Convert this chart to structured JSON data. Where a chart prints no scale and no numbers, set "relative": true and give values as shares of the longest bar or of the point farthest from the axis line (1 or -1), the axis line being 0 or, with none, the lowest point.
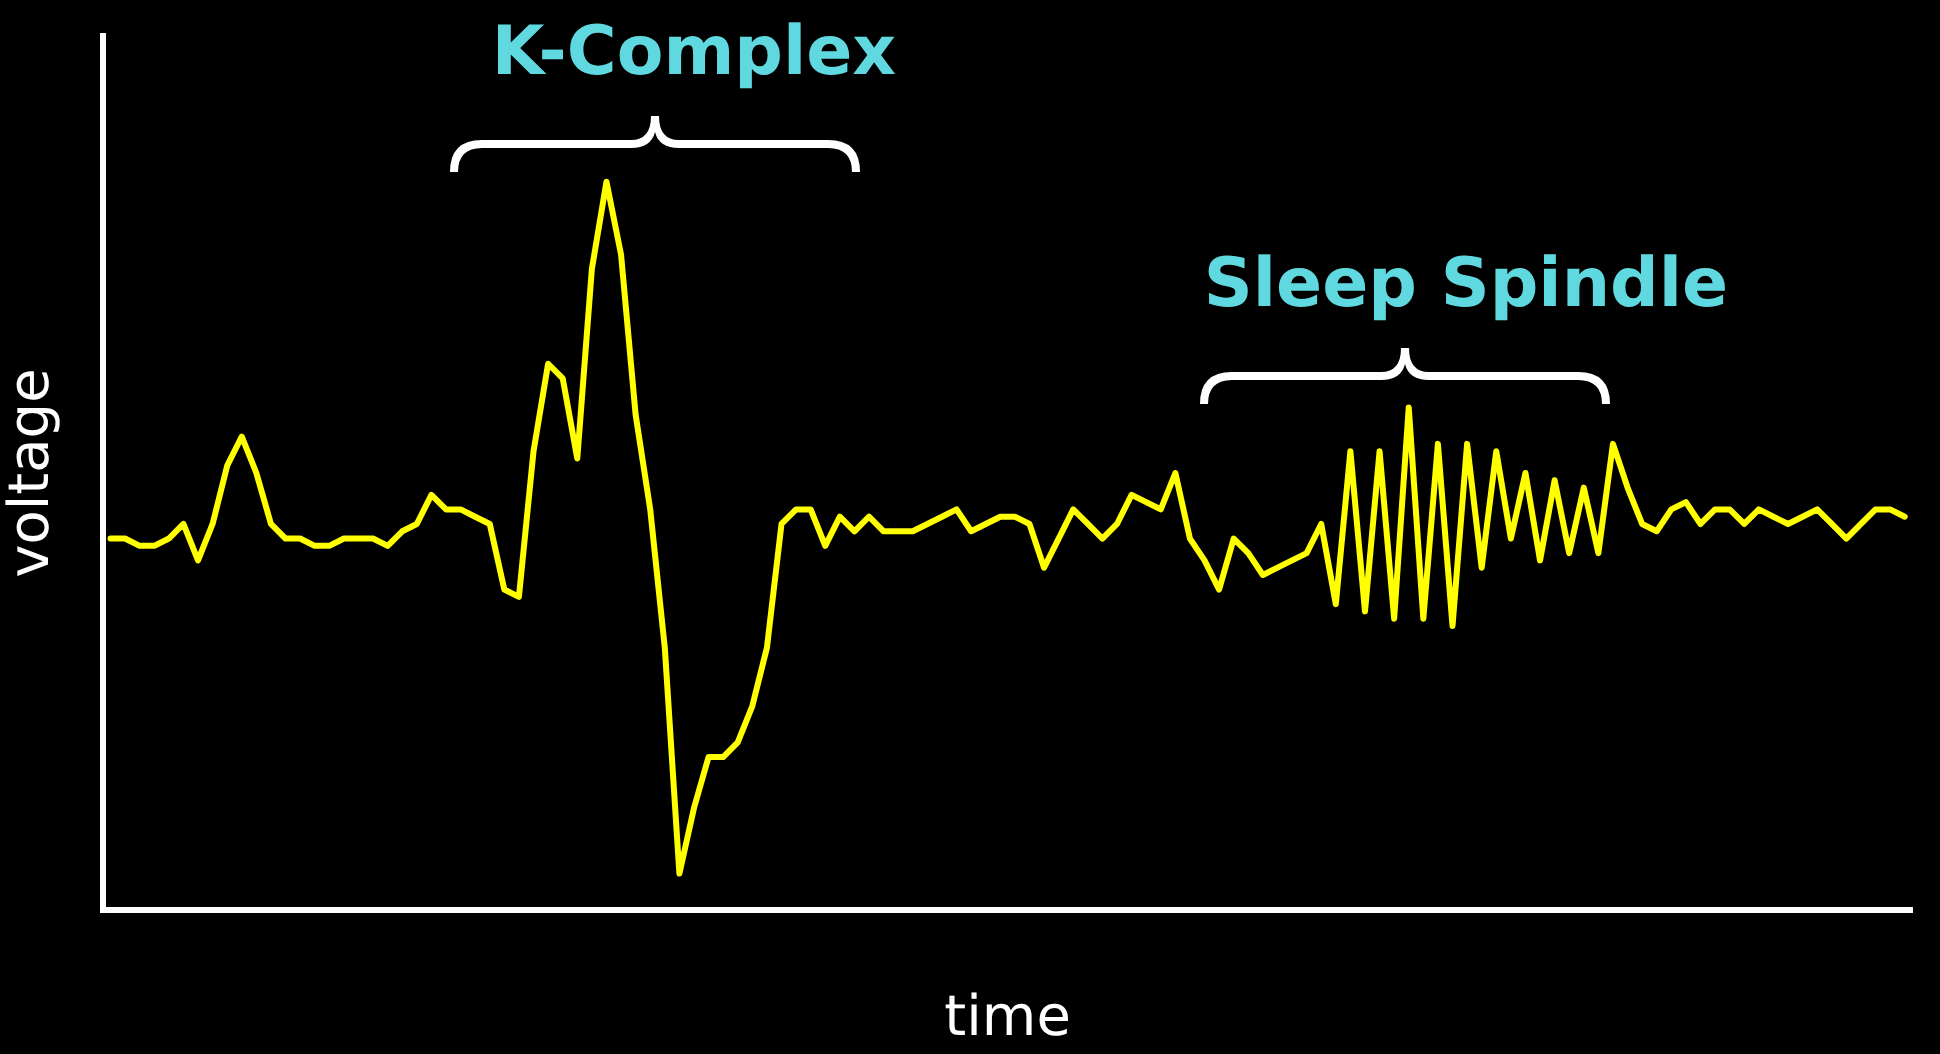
{
  "chart_data": {
    "type": "line",
    "relative": true,
    "xlabel": "time",
    "ylabel": "voltage",
    "annotations": [
      "K-Complex",
      "Sleep Spindle"
    ],
    "grid": false,
    "legend": false,
    "marker": "none",
    "line_style": "solid",
    "categories": [
      null,
      null,
      null,
      null,
      null,
      null,
      null,
      null,
      null,
      null,
      null,
      null,
      null,
      null,
      null,
      null,
      null,
      null,
      null,
      null,
      null,
      null,
      null,
      null,
      null,
      null,
      null,
      null,
      null,
      null,
      null,
      null,
      null,
      null,
      null,
      null,
      null,
      null,
      null,
      null,
      null,
      null,
      null,
      null,
      null,
      null,
      null,
      null,
      null,
      null,
      null,
      null,
      null,
      null,
      null,
      null,
      null,
      null,
      null,
      null,
      null,
      null,
      null,
      null,
      null,
      null,
      null,
      null,
      null,
      null,
      null,
      null,
      null,
      null,
      null,
      null,
      null,
      null,
      null,
      null,
      null,
      null,
      null,
      null,
      null,
      null,
      null,
      null,
      null,
      null,
      null,
      null,
      null,
      null,
      null,
      null,
      null,
      null,
      null,
      null,
      null,
      null,
      null,
      null,
      null,
      null,
      null,
      null,
      null,
      null,
      null,
      null,
      null,
      null,
      null,
      null,
      null,
      null,
      null,
      null,
      null,
      null,
      null,
      null
    ],
    "series": [
      {
        "color": "#ffff00",
        "values": [
          0.51,
          0.51,
          0.5,
          0.5,
          0.51,
          0.53,
          0.48,
          0.53,
          0.61,
          0.65,
          0.6,
          0.53,
          0.51,
          0.51,
          0.5,
          0.5,
          0.51,
          0.51,
          0.51,
          0.5,
          0.52,
          0.53,
          0.57,
          0.55,
          0.55,
          0.54,
          0.53,
          0.44,
          0.43,
          0.63,
          0.75,
          0.73,
          0.62,
          0.88,
          1,
          0.9,
          0.68,
          0.55,
          0.36,
          0.05,
          0.14,
          0.21,
          0.21,
          0.23,
          0.28,
          0.36,
          0.53,
          0.55,
          0.55,
          0.5,
          0.54,
          0.52,
          0.54,
          0.52,
          0.52,
          0.52,
          0.53,
          0.54,
          0.55,
          0.52,
          0.53,
          0.54,
          0.54,
          0.53,
          0.47,
          0.51,
          0.55,
          0.53,
          0.51,
          0.53,
          0.57,
          0.56,
          0.55,
          0.6,
          0.51,
          0.48,
          0.44,
          0.51,
          0.49,
          0.46,
          0.47,
          0.48,
          0.49,
          0.53,
          0.42,
          0.63,
          0.41,
          0.63,
          0.4,
          0.69,
          0.4,
          0.64,
          0.39,
          0.64,
          0.47,
          0.63,
          0.51,
          0.6,
          0.48,
          0.59,
          0.49,
          0.58,
          0.49,
          0.64,
          0.58,
          0.53,
          0.52,
          0.55,
          0.56,
          0.53,
          0.55,
          0.55,
          0.53,
          0.55,
          0.54,
          0.53,
          0.54,
          0.55,
          0.53,
          0.51,
          0.53,
          0.55,
          0.55,
          0.54
        ]
      }
    ]
  }
}
